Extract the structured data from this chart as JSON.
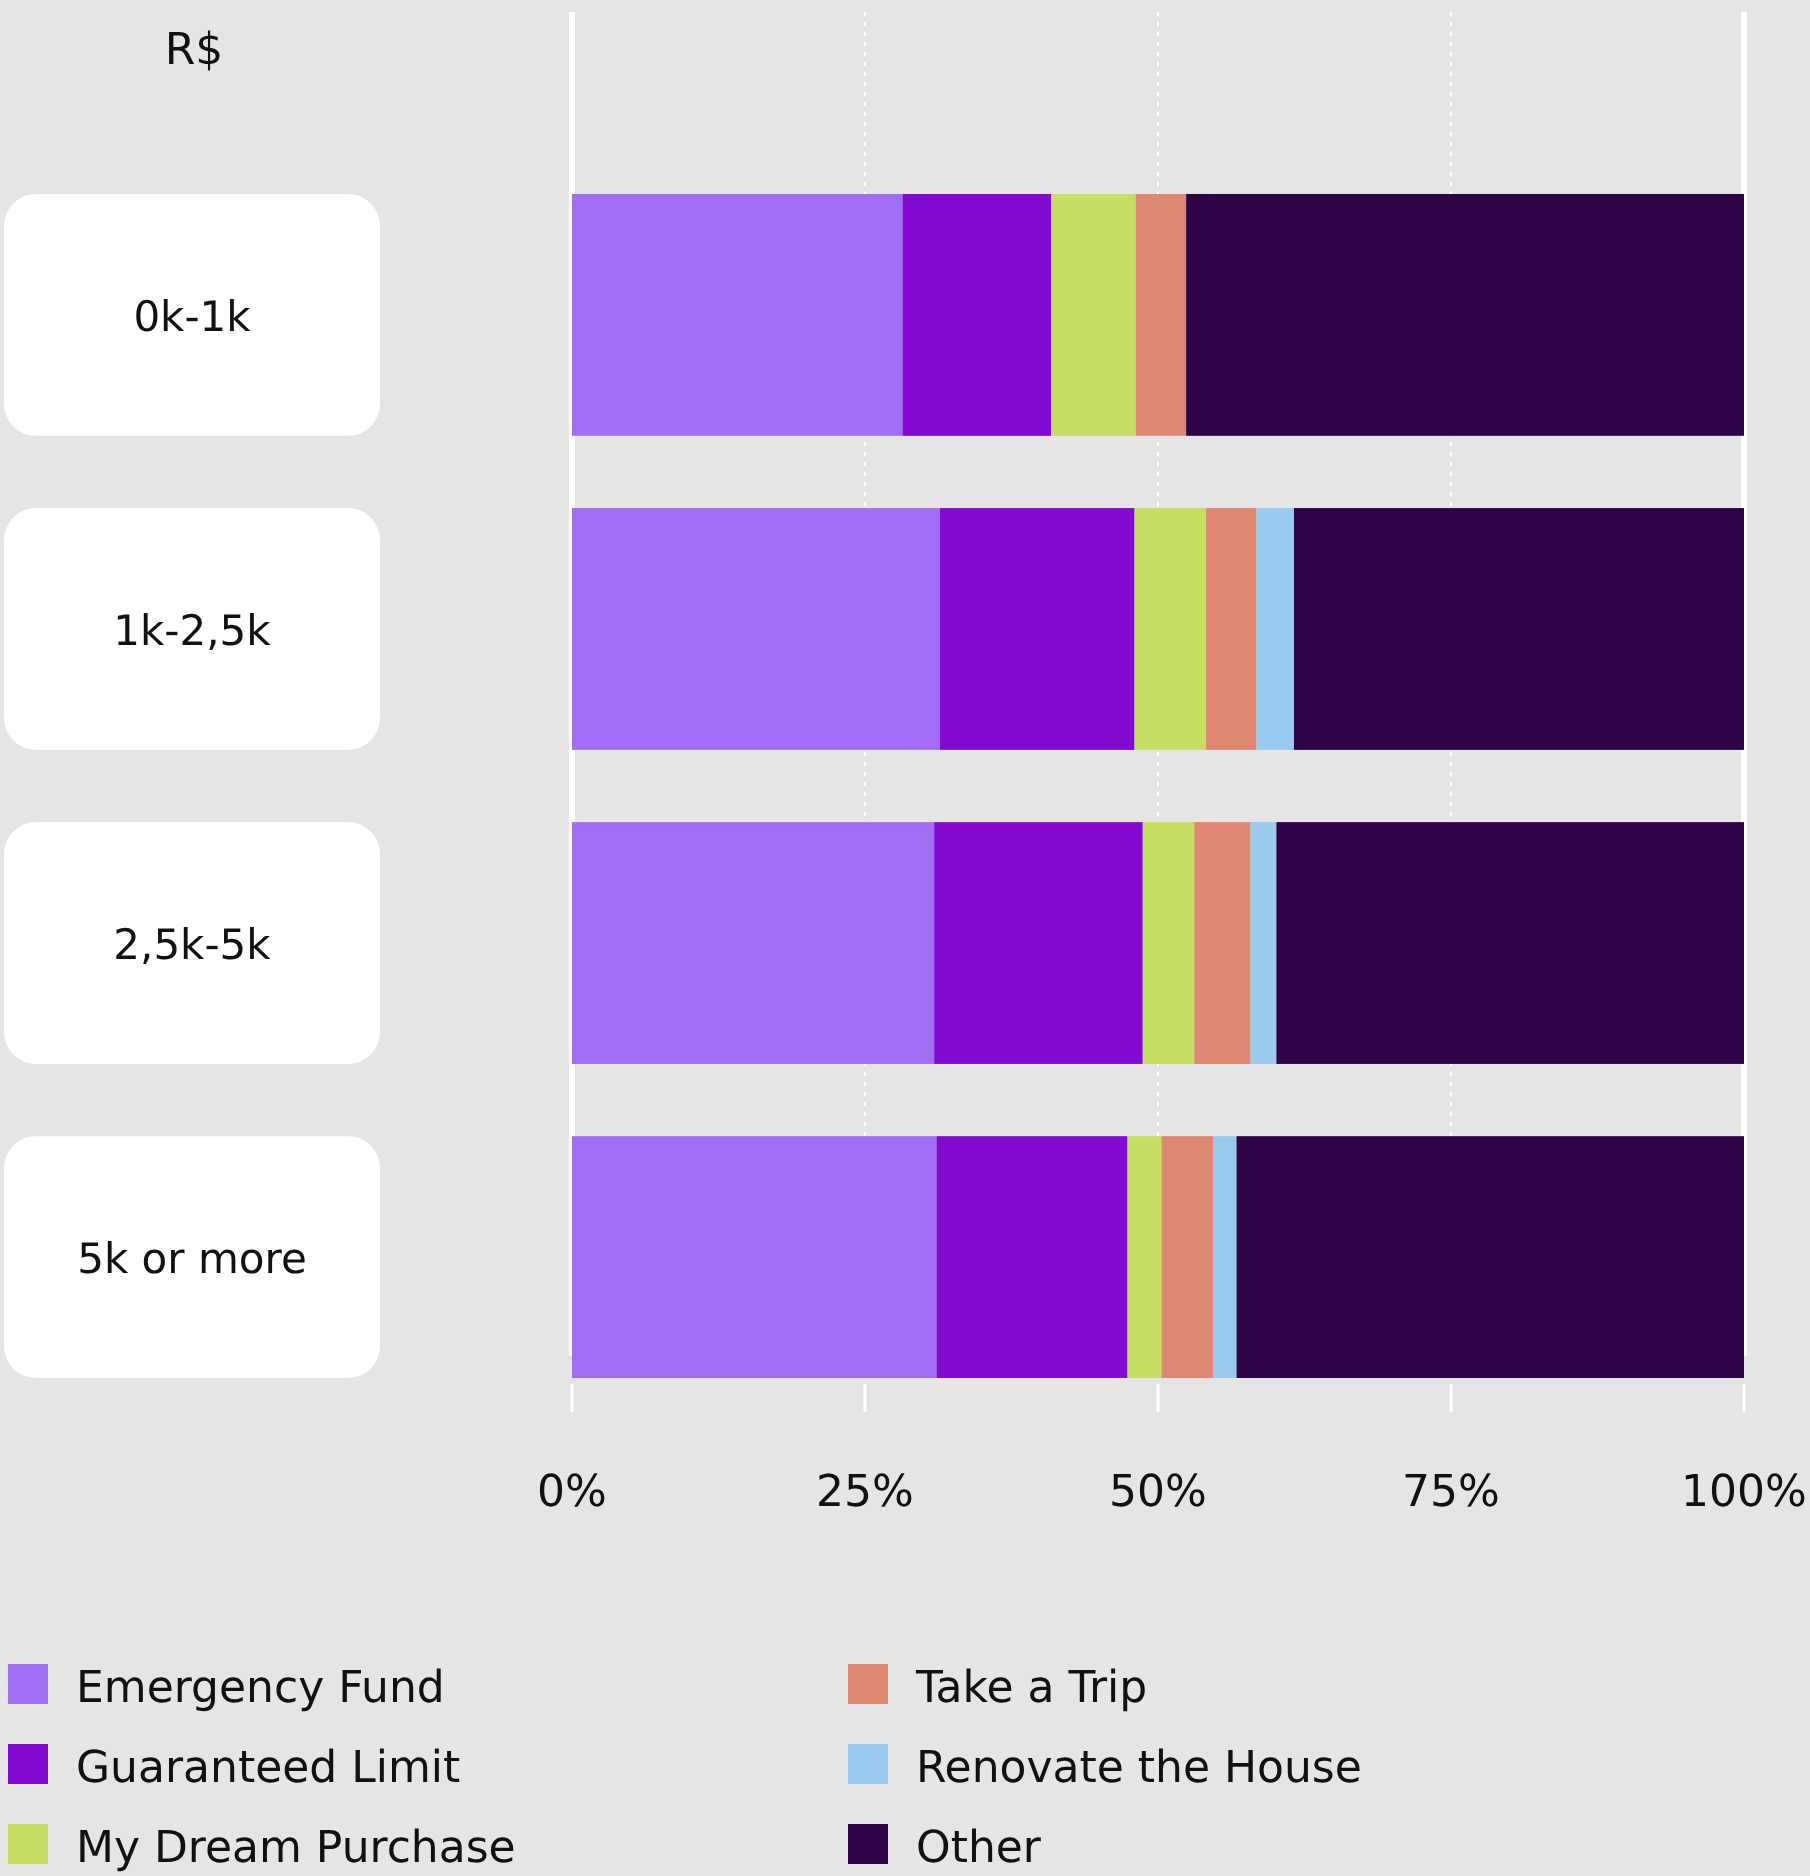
{
  "chart_data": {
    "type": "bar",
    "orientation": "horizontal",
    "stacked": true,
    "ylabel": "R$",
    "categories": [
      "0k-1k",
      "1k-2,5k",
      "2,5k-5k",
      "5k or more"
    ],
    "series": [
      {
        "name": "Emergency Fund",
        "color": "#a06ef5",
        "values": [
          28.2,
          31.4,
          30.9,
          31.1
        ]
      },
      {
        "name": "Guaranteed Limit",
        "color": "#820ad1",
        "values": [
          12.7,
          16.6,
          17.8,
          16.3
        ]
      },
      {
        "name": "My Dream Purchase",
        "color": "#c6df62",
        "values": [
          7.2,
          6.1,
          4.4,
          2.9
        ]
      },
      {
        "name": "Take a Trip",
        "color": "#e08774",
        "values": [
          4.3,
          4.3,
          4.8,
          4.4
        ]
      },
      {
        "name": "Renovate the House",
        "color": "#98cbee",
        "values": [
          0,
          3.2,
          2.2,
          2.0
        ]
      },
      {
        "name": "Other",
        "color": "#2e0447",
        "values": [
          47.6,
          38.4,
          39.9,
          43.3
        ]
      }
    ],
    "xlim": [
      0,
      100
    ],
    "xticks": [
      {
        "value": 0,
        "label": "0%"
      },
      {
        "value": 25,
        "label": "25%"
      },
      {
        "value": 50,
        "label": "50%"
      },
      {
        "value": 75,
        "label": "75%"
      },
      {
        "value": 100,
        "label": "100%"
      }
    ],
    "grid": "x",
    "legend": "bottom"
  }
}
